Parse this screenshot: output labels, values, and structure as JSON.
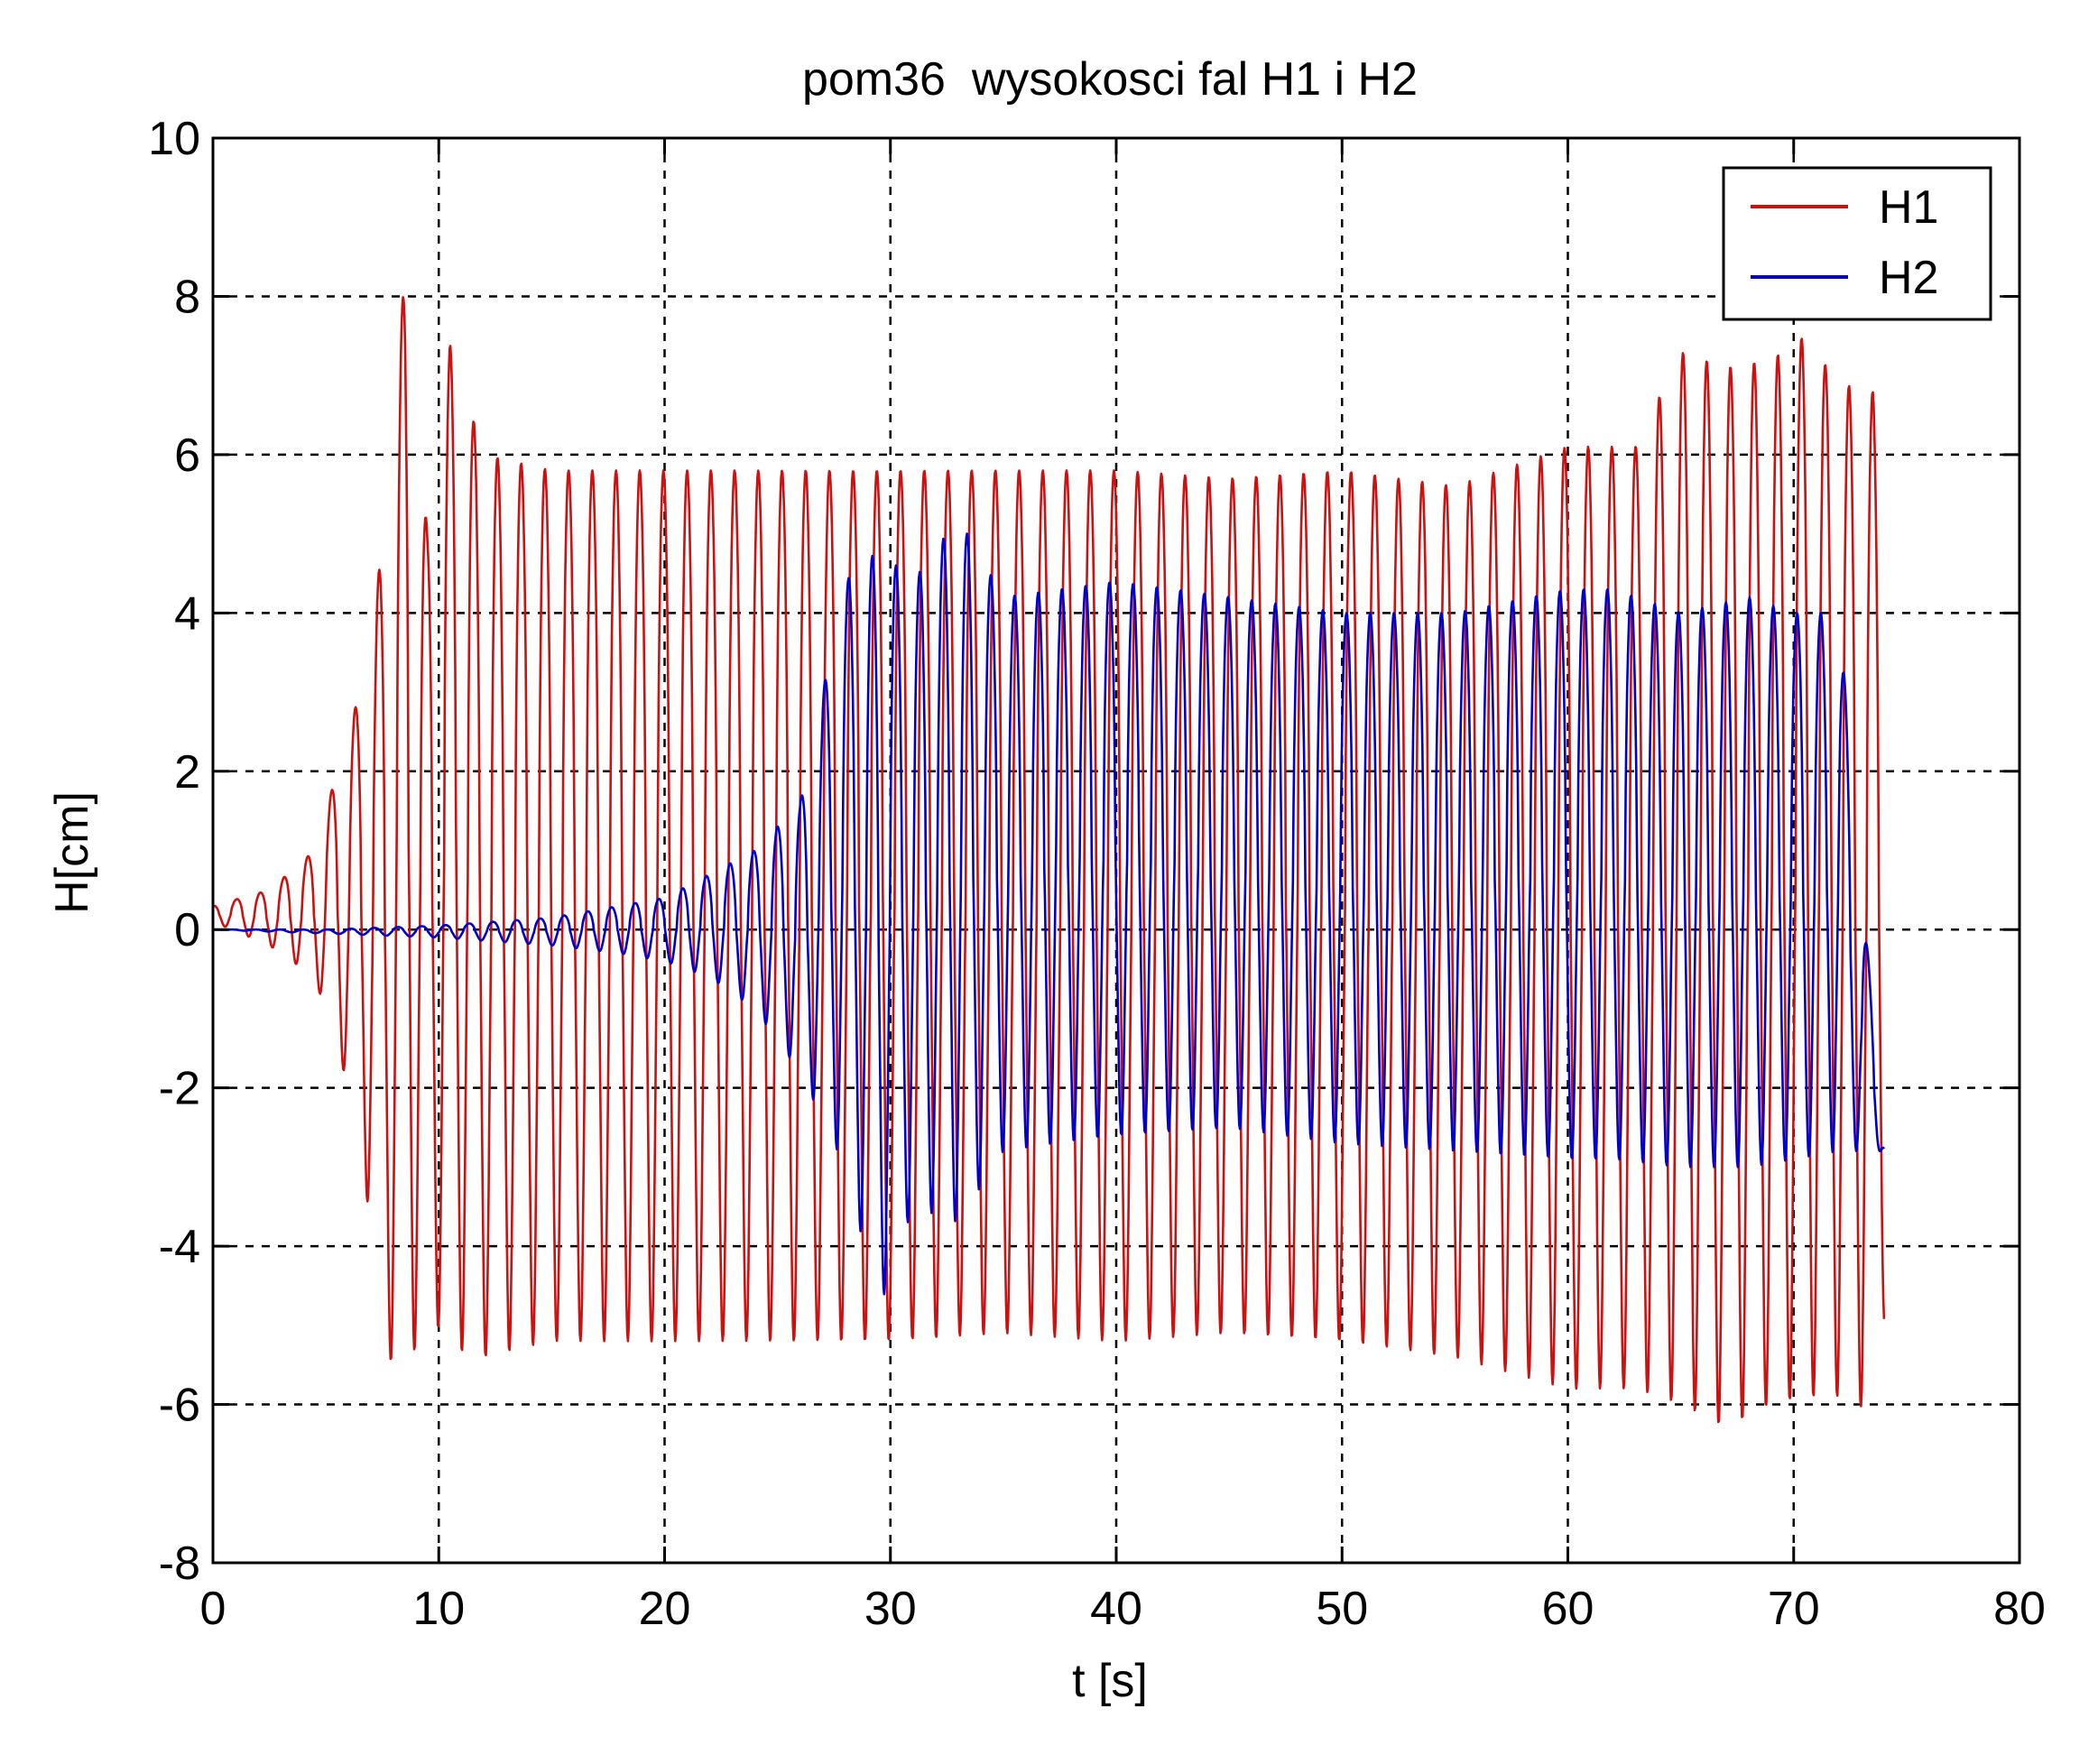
{
  "chart_data": {
    "type": "line",
    "title": "pom36  wysokosci fal H1 i H2",
    "xlabel": "t [s]",
    "ylabel": "H[cm]",
    "xlim": [
      0,
      80
    ],
    "ylim": [
      -8,
      10
    ],
    "xticks": [
      0,
      10,
      20,
      30,
      40,
      50,
      60,
      70,
      80
    ],
    "yticks": [
      -8,
      -6,
      -4,
      -2,
      0,
      2,
      4,
      6,
      8,
      10
    ],
    "xtick_labels": [
      "0",
      "10",
      "20",
      "30",
      "40",
      "50",
      "60",
      "70",
      "80"
    ],
    "ytick_labels": [
      "-8",
      "-6",
      "-4",
      "-2",
      "0",
      "2",
      "4",
      "6",
      "8",
      "10"
    ],
    "grid": true,
    "legend": "top-right",
    "series": [
      {
        "name": "H1",
        "color": "#cc1111",
        "x_start": 0,
        "x_end": 74,
        "approx_period_s": 1.05,
        "envelope_points_t": [
          0,
          2.5,
          4.5,
          5.5,
          6.5,
          7.5,
          8.5,
          9.5,
          10.5,
          12,
          15,
          20,
          25,
          30,
          35,
          40,
          45,
          50,
          55,
          60,
          63,
          65,
          67,
          69,
          70.5,
          72,
          73.5,
          74
        ],
        "envelope_upper": [
          0.3,
          0.5,
          1.0,
          2.0,
          3.0,
          4.8,
          8.3,
          5.0,
          7.4,
          6.0,
          5.8,
          5.8,
          5.8,
          5.8,
          5.8,
          5.8,
          5.7,
          5.8,
          5.6,
          6.1,
          6.1,
          7.3,
          7.1,
          7.2,
          7.5,
          6.9,
          6.8,
          6.0
        ],
        "envelope_lower": [
          0.1,
          -0.2,
          -0.6,
          -1.5,
          -2.5,
          -5.3,
          -5.7,
          -4.8,
          -5.3,
          -5.4,
          -5.2,
          -5.2,
          -5.2,
          -5.2,
          -5.1,
          -5.2,
          -5.1,
          -5.2,
          -5.4,
          -5.8,
          -5.8,
          -6.0,
          -6.3,
          -6.0,
          -5.9,
          -5.9,
          -6.1,
          -5.0
        ]
      },
      {
        "name": "H2",
        "color": "#0000cc",
        "x_start": 0,
        "x_end": 74,
        "approx_period_s": 1.05,
        "envelope_points_t": [
          0,
          5,
          10,
          15,
          18,
          20,
          22,
          24,
          26,
          28,
          29.5,
          31,
          33,
          35,
          40,
          45,
          50,
          55,
          60,
          62,
          65,
          68,
          70,
          72,
          74
        ],
        "envelope_upper": [
          0.0,
          0.0,
          0.05,
          0.15,
          0.3,
          0.4,
          0.7,
          1.0,
          1.6,
          4.4,
          4.8,
          4.4,
          5.2,
          4.2,
          4.4,
          4.2,
          4.0,
          4.0,
          4.3,
          4.3,
          4.0,
          4.2,
          4.0,
          4.0,
          -2.7
        ],
        "envelope_lower": [
          0.0,
          -0.05,
          -0.1,
          -0.2,
          -0.3,
          -0.4,
          -0.6,
          -1.0,
          -1.8,
          -3.0,
          -4.8,
          -3.5,
          -3.7,
          -2.8,
          -2.6,
          -2.5,
          -2.7,
          -2.8,
          -2.9,
          -2.9,
          -3.0,
          -3.0,
          -2.9,
          -2.8,
          -2.8
        ]
      }
    ]
  }
}
